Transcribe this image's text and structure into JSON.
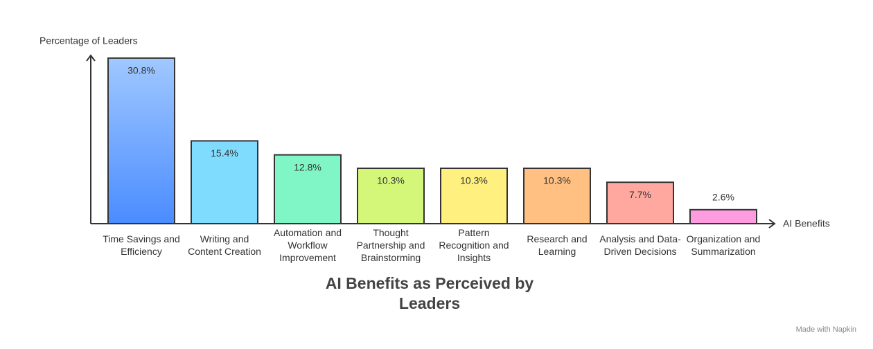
{
  "chart_data": {
    "type": "bar",
    "title": "AI Benefits as Perceived by Leaders",
    "y_label": "Percentage of Leaders",
    "x_label": "AI Benefits",
    "watermark": "Made with Napkin",
    "categories": [
      "Time Savings and Efficiency",
      "Writing and Content Creation",
      "Automation and Workflow Improvement",
      "Thought Partnership and Brainstorming",
      "Pattern Recognition and Insights",
      "Research and Learning",
      "Analysis and Data-Driven Decisions",
      "Organization and Summarization"
    ],
    "values": [
      30.8,
      15.4,
      12.8,
      10.3,
      10.3,
      10.3,
      7.7,
      2.6
    ],
    "value_labels": [
      "30.8%",
      "15.4%",
      "12.8%",
      "10.3%",
      "10.3%",
      "10.3%",
      "7.7%",
      "2.6%"
    ],
    "colors": [
      "#6aa8ff",
      "#80dcff",
      "#80f5c6",
      "#d4f77a",
      "#fff080",
      "#ffc082",
      "#ffa8a0",
      "#ff9ce0"
    ],
    "ylim": [
      0,
      31.3
    ]
  }
}
